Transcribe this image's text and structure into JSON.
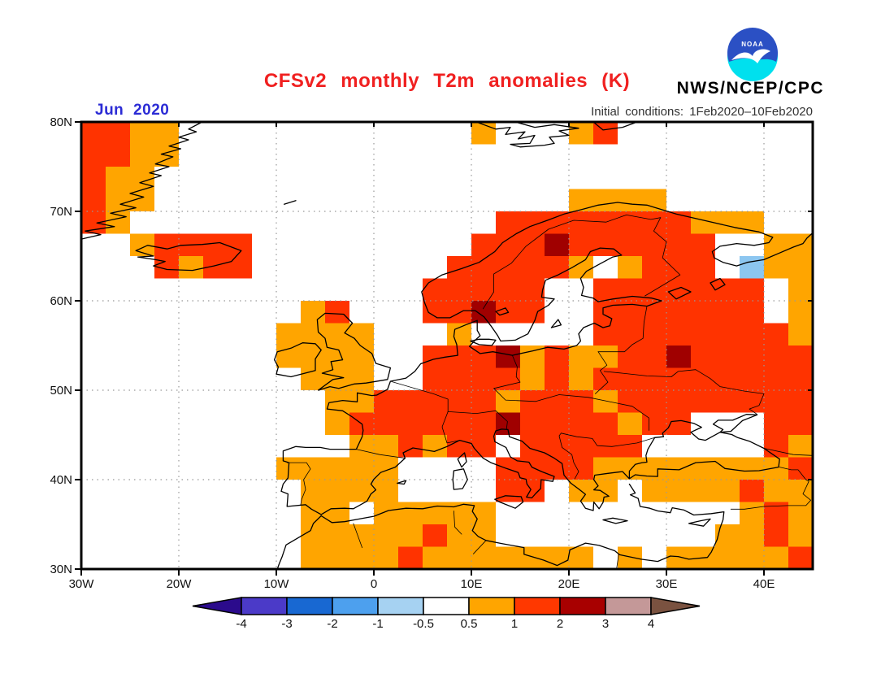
{
  "header": {
    "title": "CFSv2 monthly T2m anomalies (K)",
    "title_color": "#F02020",
    "date_label": "Jun 2020",
    "date_color": "#2B2BD5",
    "init_conditions": "Initial conditions: 1Feb2020–10Feb2020",
    "agency": "NWS/NCEP/CPC",
    "logo_label": "NOAA"
  },
  "map": {
    "lon_ticks": [
      {
        "label": "30W",
        "lon": -30
      },
      {
        "label": "20W",
        "lon": -20
      },
      {
        "label": "10W",
        "lon": -10
      },
      {
        "label": "0",
        "lon": 0
      },
      {
        "label": "10E",
        "lon": 10
      },
      {
        "label": "20E",
        "lon": 20
      },
      {
        "label": "30E",
        "lon": 30
      },
      {
        "label": "40E",
        "lon": 40
      }
    ],
    "lat_ticks": [
      {
        "label": "80N",
        "lat": 80
      },
      {
        "label": "70N",
        "lat": 70
      },
      {
        "label": "60N",
        "lat": 60
      },
      {
        "label": "50N",
        "lat": 50
      },
      {
        "label": "40N",
        "lat": 40
      },
      {
        "label": "30N",
        "lat": 30
      }
    ]
  },
  "colorbar": {
    "labels": [
      "-4",
      "-3",
      "-2",
      "-1",
      "-0.5",
      "0.5",
      "1",
      "2",
      "3",
      "4"
    ],
    "segment_colors": [
      "#4B3AC8",
      "#1868D2",
      "#4DA0EE",
      "#A6D2F2",
      "#FFFFFF",
      "#FFA500",
      "#FF3800",
      "#A80000",
      "#C49898"
    ],
    "left_arrow_color": "#2B0B8C",
    "right_arrow_color": "#7A5240"
  },
  "chart_data": {
    "type": "heatmap",
    "title": "CFSv2 monthly T2m anomalies (K)",
    "units": "K",
    "forecast_month": "Jun 2020",
    "initial_conditions": "1Feb2020-10Feb2020",
    "projection": "equirectangular lat-lon",
    "lon_range": [
      -30,
      45
    ],
    "lat_range": [
      30,
      80
    ],
    "grid_step_deg": 10,
    "colorbar_levels": [
      -4,
      -3,
      -2,
      -1,
      -0.5,
      0.5,
      1,
      2,
      3,
      4
    ],
    "anomaly_cells": {
      "cell_deg": 2.5,
      "origin": "top-left cell at 30W,80N; each row string runs west-to-east, rows run north-to-south",
      "legend": {
        "o": {
          "range_k": "0.5 to 1",
          "color": "#FFA500"
        },
        "r": {
          "range_k": "1 to 2",
          "color": "#FF3300"
        },
        "d": {
          "range_k": "2 to 3",
          "color": "#A00000"
        },
        "b": {
          "range_k": "-1 to -0.5",
          "color": "#8CC6F0"
        },
        ".": {
          "range_k": "-0.5 to 0.5 or ocean",
          "color": "none"
        }
      },
      "rows": [
        "rroo............o...or........",
        "rroo..........................",
        "roo...........................",
        "roo.................oooo......",
        "ro...............rrrrrrrrooo..",
        "..orrrr.........rrrdrrrrrr..oo",
        "...rorr........rrrrro.orrr.boo",
        "..............rrrrr..rrrrrrr.o",
        ".........or...rrdrr..rrrrrrr.o",
        "........oooo...o.....rrrrrrrro",
        "........oooo..rrrdoroorrdrrrrr",
        ".........ooo..rrrrororrrrrrrrr",
        "..........oorrrrrorrrorrrrrrrr",
        "..........orrrrrrdrrrrorr...rr",
        "...........oororr.rrrrr.....ro",
        "........ooooo....rrrroooooooor",
        ".........oooo....rr.oo.ooooroo",
        ".........oo.ooooo..........oro",
        ".........oooooroo.........ooro",
        ".........oooorooooooo.o.ooooor"
      ]
    }
  }
}
